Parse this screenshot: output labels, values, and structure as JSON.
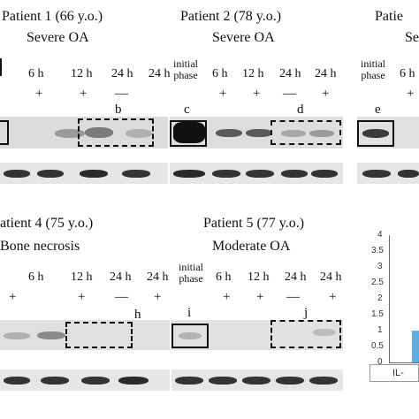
{
  "panels": {
    "p1": {
      "title": "Patient 1  (66 y.o.)",
      "subtitle": "Severe OA",
      "lanes": [
        "6 h",
        "12 h",
        "24 h",
        "24 h"
      ],
      "signs": [
        "+",
        "+",
        "—",
        ""
      ],
      "letters": [
        "b"
      ]
    },
    "p2": {
      "title": "Patient 2  (78 y.o.)",
      "subtitle": "Severe OA",
      "phase": "initial\nphase",
      "lanes": [
        "6 h",
        "12 h",
        "24 h",
        "24 h"
      ],
      "signs": [
        "+",
        "+",
        "—",
        "+"
      ],
      "letters": [
        "c",
        "d"
      ]
    },
    "p3": {
      "title": "Patie",
      "subtitle": "Se",
      "phase": "initial\nphase",
      "lanes": [
        "6 h"
      ],
      "signs": [
        "+"
      ],
      "letters": [
        "e"
      ]
    },
    "p4": {
      "title": "atient 4  (75 y.o.)",
      "subtitle": "Bone necrosis",
      "lanes": [
        "6 h",
        "12 h",
        "24 h",
        "24 h"
      ],
      "signs": [
        "+",
        "+",
        "—",
        "+"
      ],
      "letters": [
        "h"
      ]
    },
    "p5": {
      "title": "Patient 5  (77 y.o.)",
      "subtitle": "Moderate  OA",
      "phase": "initial\nphase",
      "lanes": [
        "6 h",
        "12 h",
        "24 h",
        "24 h"
      ],
      "signs": [
        "+",
        "+",
        "—",
        "+"
      ],
      "letters": [
        "i",
        "j"
      ]
    }
  },
  "chart_data": {
    "type": "bar",
    "categories": [
      "IL-"
    ],
    "values": [
      1
    ],
    "yticks": [
      "4",
      "3.5",
      "3",
      "2.5",
      "2",
      "1.5",
      "1",
      "0.5",
      "0"
    ],
    "ylim": [
      0,
      4
    ],
    "bar_color": "#5aaee6"
  }
}
